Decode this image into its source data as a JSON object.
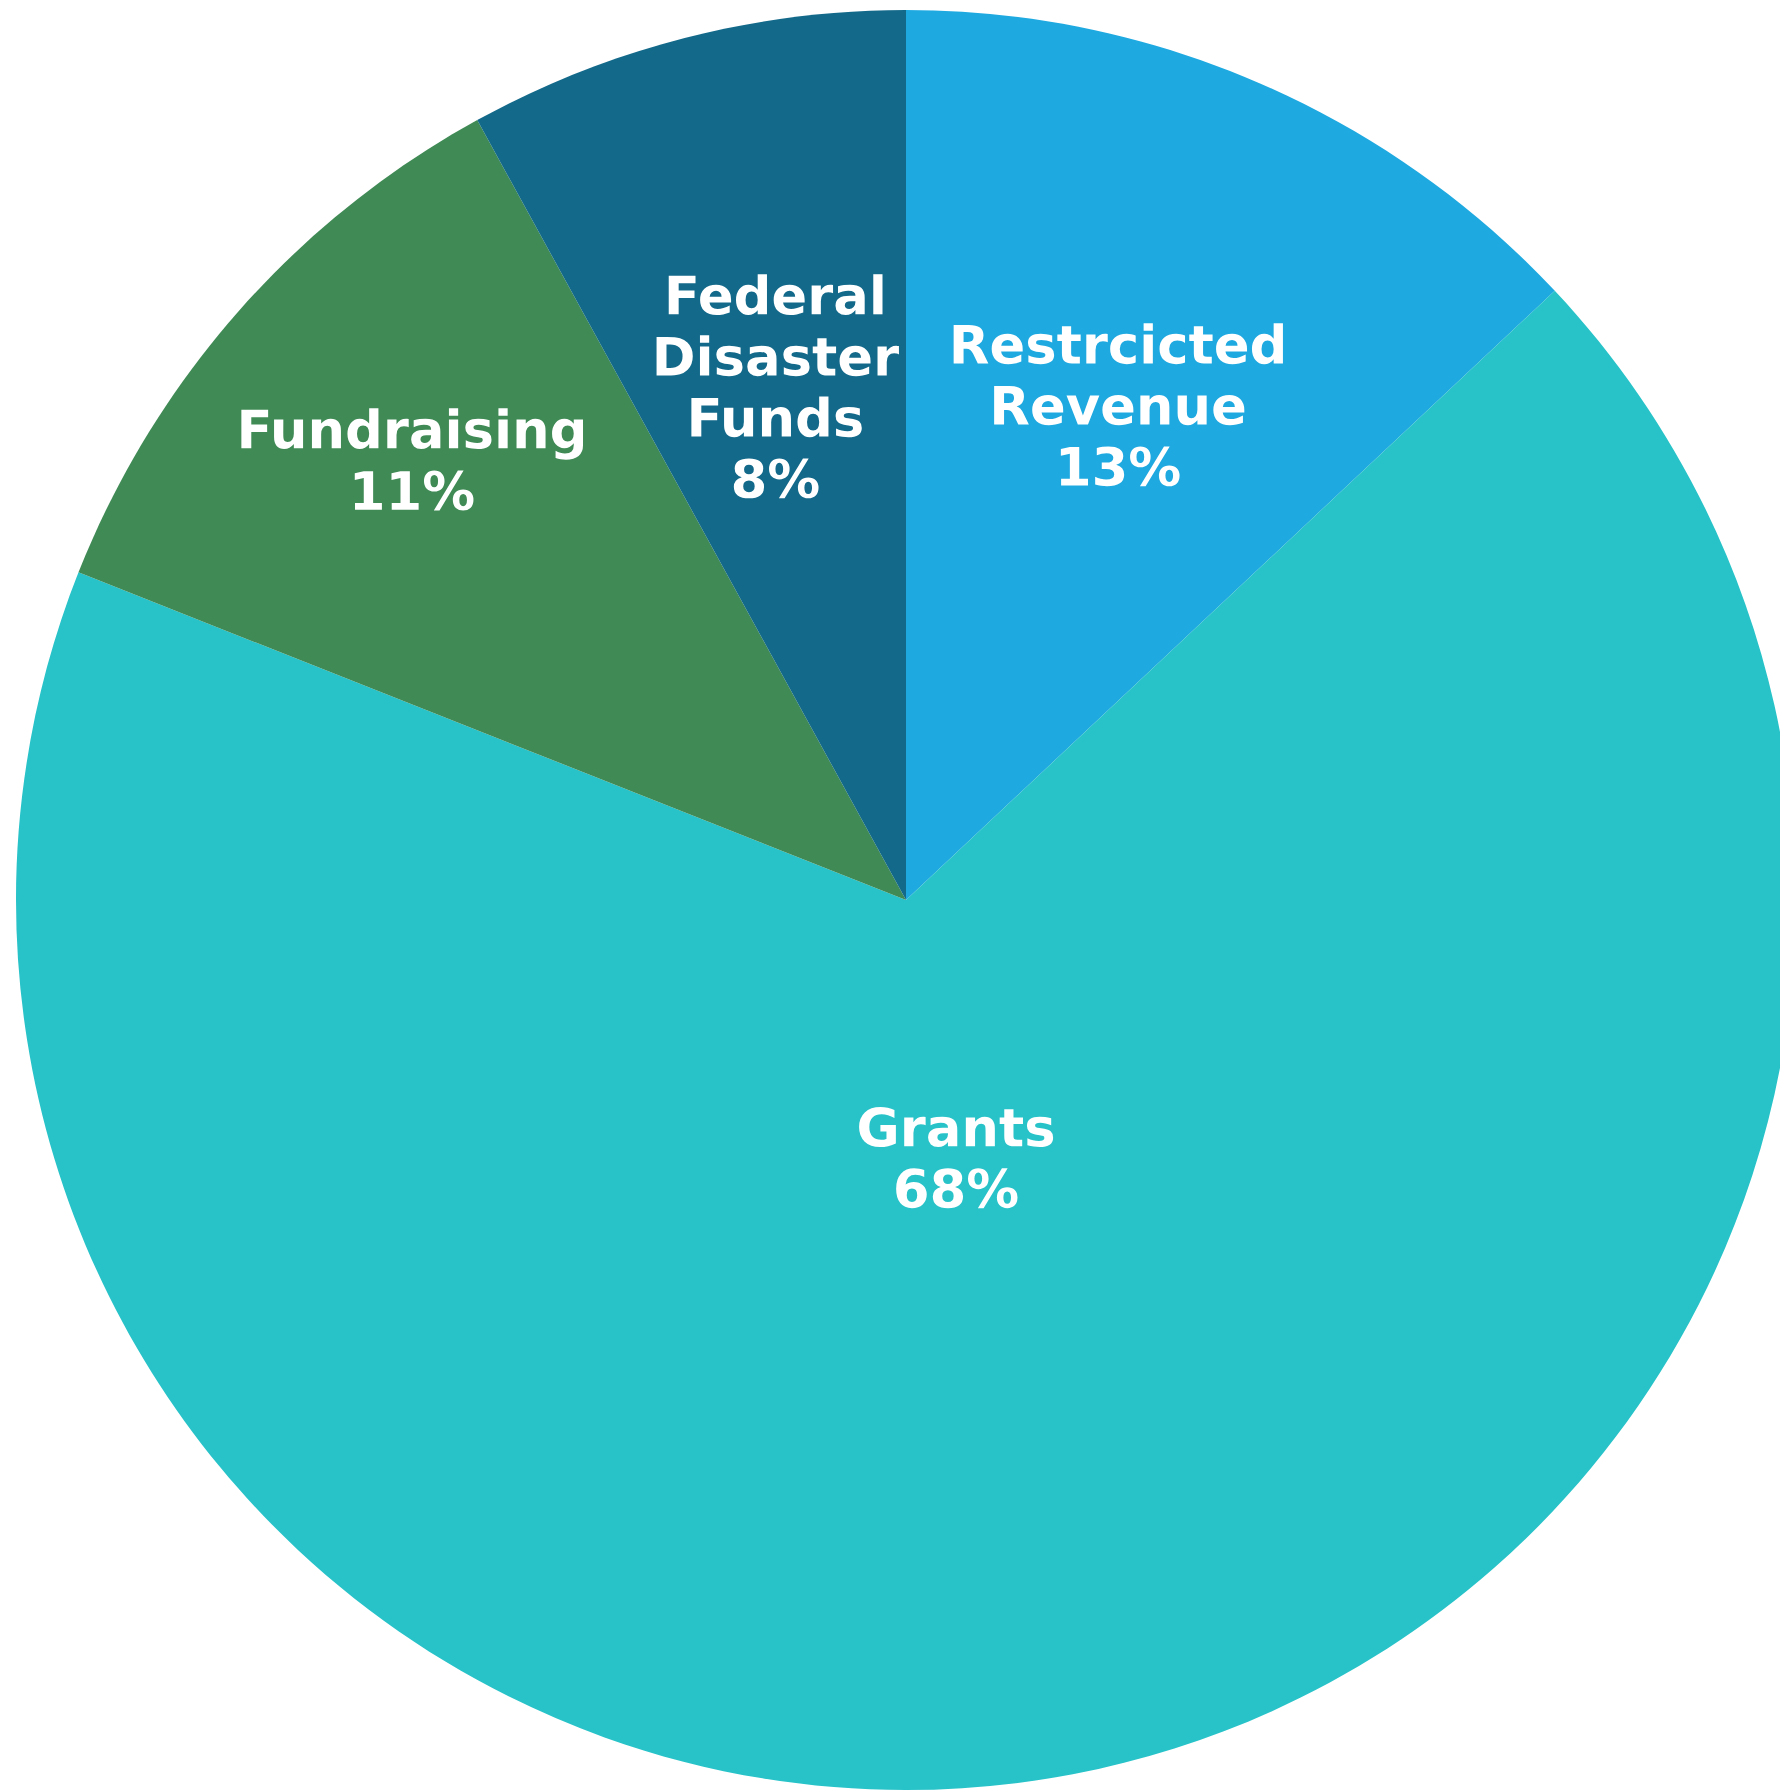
{
  "chart_data": {
    "type": "pie",
    "categories": [
      "Restrcicted Revenue",
      "Grants",
      "Fundraising",
      "Federal Disaster Funds"
    ],
    "values": [
      13,
      68,
      11,
      8
    ],
    "value_labels": [
      "13%",
      "68%",
      "11%",
      "8%"
    ],
    "colors": [
      "#1fa9e1",
      "#27c3c9",
      "#3f8a55",
      "#13698a"
    ],
    "legend": false
  }
}
